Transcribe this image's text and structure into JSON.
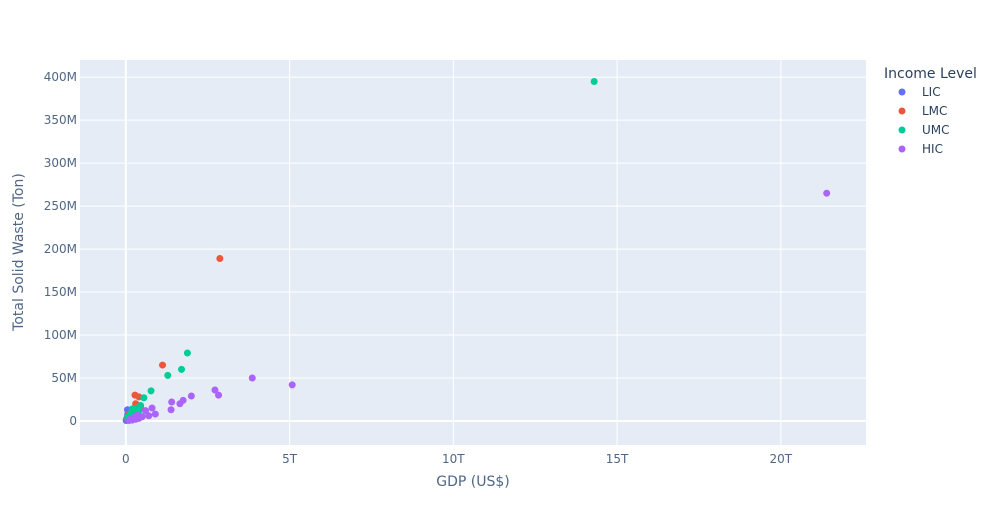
{
  "chart_data": {
    "type": "scatter",
    "title": "",
    "xlabel": "GDP (US$)",
    "ylabel": "Total Solid Waste (Ton)",
    "xlim": [
      -1400000000000.0,
      22600000000000.0
    ],
    "ylim": [
      -28000000.0,
      420000000.0
    ],
    "x_ticks": [
      0,
      5000000000000.0,
      10000000000000.0,
      15000000000000.0,
      20000000000000.0
    ],
    "x_tick_labels": [
      "0",
      "5T",
      "10T",
      "15T",
      "20T"
    ],
    "y_ticks": [
      0,
      50000000.0,
      100000000.0,
      150000000.0,
      200000000.0,
      250000000.0,
      300000000.0,
      350000000.0,
      400000000.0
    ],
    "y_tick_labels": [
      "0",
      "50M",
      "100M",
      "150M",
      "200M",
      "250M",
      "300M",
      "350M",
      "400M"
    ],
    "grid": true,
    "legend_title": "Income Level",
    "legend_position": "right",
    "series": [
      {
        "name": "LIC",
        "color": "#636efa",
        "points": [
          [
            10000000000.0,
            500000.0
          ],
          [
            20000000000.0,
            1500000.0
          ],
          [
            30000000000.0,
            3000000.0
          ],
          [
            40000000000.0,
            2000000.0
          ],
          [
            50000000000.0,
            5000000.0
          ],
          [
            60000000000.0,
            8000000.0
          ],
          [
            80000000000.0,
            4000000.0
          ],
          [
            100000000000.0,
            6000000.0
          ],
          [
            120000000000.0,
            10000000.0
          ],
          [
            50000000000.0,
            13000000.0
          ]
        ]
      },
      {
        "name": "LMC",
        "color": "#ef553b",
        "points": [
          [
            2870000000000.0,
            189000000.0
          ],
          [
            1120000000000.0,
            65000000.0
          ],
          [
            280000000000.0,
            30000000.0
          ],
          [
            400000000000.0,
            28000000.0
          ],
          [
            300000000000.0,
            20000000.0
          ],
          [
            450000000000.0,
            15000000.0
          ],
          [
            200000000000.0,
            12000000.0
          ],
          [
            100000000000.0,
            8000000.0
          ],
          [
            150000000000.0,
            5000000.0
          ],
          [
            50000000000.0,
            3000000.0
          ],
          [
            350000000000.0,
            18000000.0
          ],
          [
            250000000000.0,
            10000000.0
          ]
        ]
      },
      {
        "name": "UMC",
        "color": "#00cc96",
        "points": [
          [
            14300000000000.0,
            395000000.0
          ],
          [
            1880000000000.0,
            79000000.0
          ],
          [
            1700000000000.0,
            60000000.0
          ],
          [
            1280000000000.0,
            53000000.0
          ],
          [
            770000000000.0,
            35000000.0
          ],
          [
            550000000000.0,
            27000000.0
          ],
          [
            450000000000.0,
            18000000.0
          ],
          [
            350000000000.0,
            15000000.0
          ],
          [
            300000000000.0,
            13000000.0
          ],
          [
            250000000000.0,
            11000000.0
          ],
          [
            200000000000.0,
            14000000.0
          ],
          [
            150000000000.0,
            9000000.0
          ],
          [
            100000000000.0,
            6000000.0
          ],
          [
            50000000000.0,
            4000000.0
          ],
          [
            400000000000.0,
            12000000.0
          ]
        ]
      },
      {
        "name": "HIC",
        "color": "#ab63fa",
        "points": [
          [
            21400000000000.0,
            265000000.0
          ],
          [
            3860000000000.0,
            50000000.0
          ],
          [
            5080000000000.0,
            42000000.0
          ],
          [
            2720000000000.0,
            36000000.0
          ],
          [
            2830000000000.0,
            30000000.0
          ],
          [
            2000000000000.0,
            29000000.0
          ],
          [
            1750000000000.0,
            24000000.0
          ],
          [
            1650000000000.0,
            20000000.0
          ],
          [
            1400000000000.0,
            22000000.0
          ],
          [
            1380000000000.0,
            13000000.0
          ],
          [
            800000000000.0,
            15000000.0
          ],
          [
            900000000000.0,
            8000000.0
          ],
          [
            600000000000.0,
            12000000.0
          ],
          [
            700000000000.0,
            6000000.0
          ],
          [
            500000000000.0,
            5000000.0
          ],
          [
            400000000000.0,
            3000000.0
          ],
          [
            300000000000.0,
            2000000.0
          ],
          [
            200000000000.0,
            1000000.0
          ],
          [
            100000000000.0,
            500000.0
          ],
          [
            350000000000.0,
            7000000.0
          ],
          [
            250000000000.0,
            4000000.0
          ],
          [
            150000000000.0,
            2500000.0
          ]
        ]
      }
    ]
  }
}
